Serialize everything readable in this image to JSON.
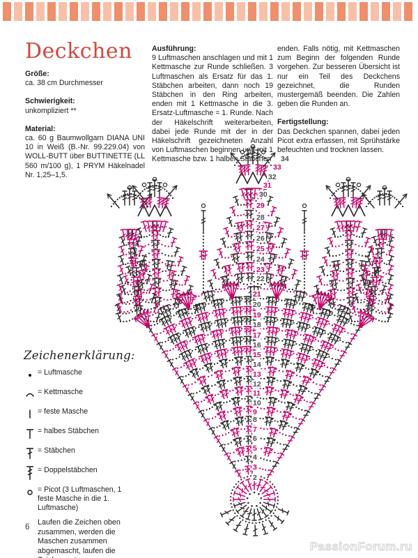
{
  "header": {
    "title": "Deckchen"
  },
  "info": {
    "size_heading": "Größe:",
    "size_body": "ca. 38 cm Durchmesser",
    "difficulty_heading": "Schwierigkeit:",
    "difficulty_body": "unkompliziert **",
    "material_heading": "Material:",
    "material_body": "ca. 60 g Baumwollgarn DIANA UNI 10 in Weiß (B.-Nr. 99.229.04) von WOLL-BUTT über BUTTINETTE (LL 560 m/100 g), 1 PRYM Häkelnadel Nr. 1,25–1,5."
  },
  "instructions": {
    "heading": "Ausführung:",
    "body": "9 Luftmaschen anschlagen und mit 1 Kettmasche zur Runde schließen. 3 Luftmaschen als Ersatz für das 1. Stäbchen arbeiten, dann noch 19 Stäbchen in den Ring arbeiten, enden mit 1 Kettmasche in die 3. Ersatz-Luftmasche = 1. Runde. Nach der Häkelschrift weiterarbeiten, dabei jede Runde mit der in der Häkelschrift gezeichneten Anzahl von Luftmaschen beginnen und mit 1 Kettmasche bzw. 1 halben Stäbchen",
    "body_cont": "enden. Falls nötig, mit Kettmaschen zum Beginn der folgenden Runde vorgehen. Zur besseren Übersicht ist nur ein Teil des Deckchens gezeichnet, die Runden mustergemäß beenden. Die Zahlen geben die Runden an.",
    "finishing_heading": "Fertigstellung:",
    "finishing_body": "Das Deckchen spannen, dabei jeden Picot extra erfassen, mit Sprühstärke befeuchten und trocknen lassen."
  },
  "legend": {
    "title": "Zeichenerklärung:",
    "items": [
      {
        "symbol": "chain-stitch-icon",
        "label": "= Luftmasche"
      },
      {
        "symbol": "slip-stitch-icon",
        "label": "= Kettmasche"
      },
      {
        "symbol": "single-crochet-icon",
        "label": "= feste Masche"
      },
      {
        "symbol": "half-double-crochet-icon",
        "label": "= halbes Stäbchen"
      },
      {
        "symbol": "double-crochet-icon",
        "label": "= Stäbchen"
      },
      {
        "symbol": "treble-crochet-icon",
        "label": "= Doppelstäbchen"
      },
      {
        "symbol": "picot-icon",
        "label": "= Picot (3 Luftmaschen, 1 feste Masche in die 1. Luftmasche)"
      }
    ],
    "note": "Laufen die Zeichen oben zusammen, werden die Maschen zusammen abgemascht, laufen die Zeichen unten zusammen, werden die Maschen in eine Einstichstelle gearbeitet."
  },
  "chart_data": {
    "type": "crochet-diagram",
    "round_numbers": [
      2,
      3,
      4,
      5,
      6,
      7,
      8,
      9,
      10,
      11,
      12,
      13,
      14,
      15,
      16,
      17,
      18,
      19,
      20,
      21,
      22,
      23,
      24,
      25,
      26,
      27,
      28,
      29,
      30,
      31,
      32,
      33,
      34
    ],
    "rounds_total": 34,
    "round1_stitch_count": 20,
    "ring_chain_count": 9,
    "colors": {
      "odd": "#c7006b",
      "even": "#2e2c2d",
      "number_even": "#4d4b4c"
    }
  },
  "footer": {
    "page_number": "6",
    "watermark": "PassionForum.ru"
  }
}
